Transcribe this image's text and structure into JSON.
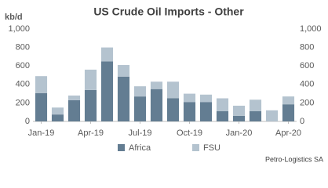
{
  "chart_data": {
    "type": "stacked_bar",
    "title": "US Crude Oil Imports - Other",
    "y_label": "kb/d",
    "source": "Petro-Logistics SA",
    "categories": [
      "Jan-19",
      null,
      null,
      "Apr-19",
      null,
      null,
      "Jul-19",
      null,
      null,
      "Oct-19",
      null,
      null,
      "Jan-20",
      null,
      null,
      "Apr-20"
    ],
    "series": [
      {
        "name": "Africa",
        "color": "#637d92",
        "values": [
          305,
          75,
          230,
          340,
          650,
          485,
          270,
          350,
          250,
          210,
          210,
          110,
          60,
          110,
          0,
          185
        ]
      },
      {
        "name": "FSU",
        "color": "#b4c3cf",
        "values": [
          185,
          75,
          50,
          220,
          150,
          125,
          110,
          80,
          180,
          90,
          80,
          140,
          110,
          125,
          120,
          85
        ]
      }
    ],
    "ylim": [
      0,
      1000
    ],
    "yticks": [
      0,
      200,
      400,
      600,
      800,
      {
        "value": 1000,
        "label": "1,000"
      }
    ],
    "y2lim": [
      0,
      1000
    ],
    "y2ticks": [
      0,
      200,
      400,
      600,
      800,
      {
        "value": 1000,
        "label": "1,000"
      }
    ],
    "grid": false,
    "legend": "bottom"
  }
}
